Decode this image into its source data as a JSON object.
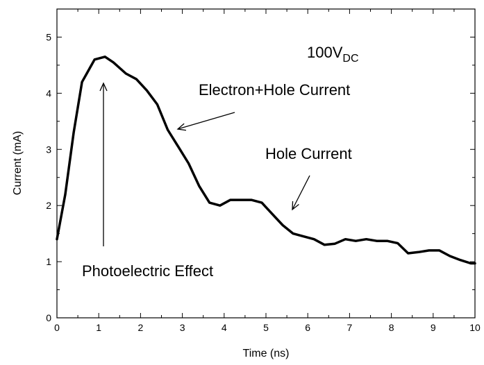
{
  "chart_data": {
    "type": "line",
    "xlabel": "Time (ns)",
    "ylabel": "Current (mA)",
    "xlim": [
      0,
      10
    ],
    "ylim": [
      0,
      5.5
    ],
    "x_ticks": [
      "0",
      "1",
      "2",
      "3",
      "4",
      "5",
      "6",
      "7",
      "8",
      "9",
      "10"
    ],
    "y_ticks": [
      "0",
      "1",
      "2",
      "3",
      "4",
      "5"
    ],
    "grid": false,
    "series": [
      {
        "x": [
          0,
          0.2,
          0.4,
          0.6,
          0.9,
          1.15,
          1.35,
          1.65,
          1.9,
          2.15,
          2.4,
          2.65,
          2.9,
          3.15,
          3.4,
          3.65,
          3.9,
          4.15,
          4.4,
          4.65,
          4.9,
          5.15,
          5.4,
          5.65,
          5.9,
          6.15,
          6.4,
          6.65,
          6.9,
          7.15,
          7.4,
          7.65,
          7.9,
          8.15,
          8.4,
          8.65,
          8.9,
          9.15,
          9.4,
          9.65,
          9.9,
          10
        ],
        "values": [
          1.4,
          2.2,
          3.3,
          4.2,
          4.6,
          4.65,
          4.55,
          4.35,
          4.25,
          4.05,
          3.8,
          3.35,
          3.05,
          2.75,
          2.35,
          2.05,
          2.0,
          2.1,
          2.1,
          2.1,
          2.05,
          1.85,
          1.65,
          1.5,
          1.45,
          1.4,
          1.3,
          1.32,
          1.4,
          1.37,
          1.4,
          1.37,
          1.37,
          1.33,
          1.15,
          1.17,
          1.2,
          1.2,
          1.1,
          1.03,
          0.97,
          0.97
        ],
        "color": "#000000"
      }
    ],
    "annotations": {
      "voltage_main": "100V",
      "voltage_sub": "DC",
      "electron_hole": "Electron+Hole Current",
      "hole": "Hole Current",
      "photoelectric": "Photoelectric Effect"
    }
  }
}
